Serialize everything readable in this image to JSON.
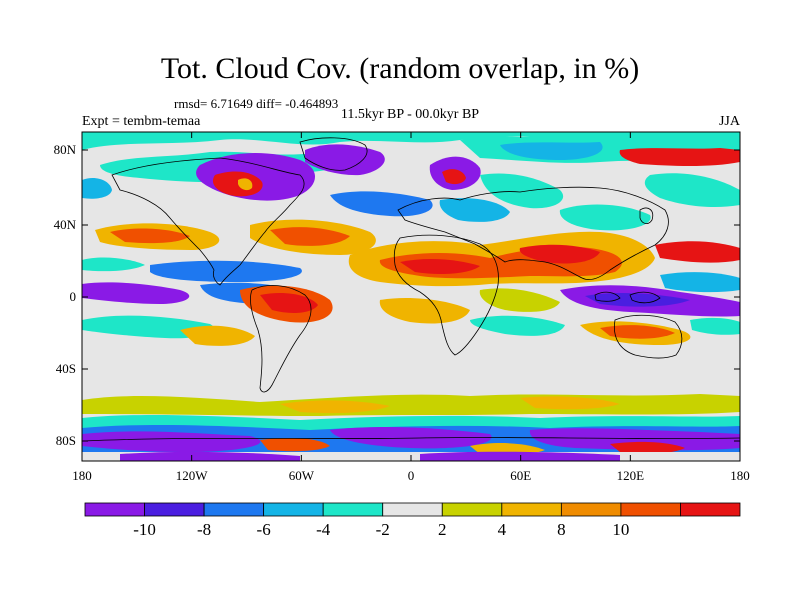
{
  "title": "Tot. Cloud Cov. (random overlap, in %)",
  "stats": "rmsd= 6.71649 diff= -0.464893",
  "subtitle": "11.5kyr BP - 00.0kyr BP",
  "experiment": "Expt = tembm-temaa",
  "season": "JJA",
  "axes": {
    "y_ticks": [
      "80N",
      "40N",
      "0",
      "40S",
      "80S"
    ],
    "x_ticks": [
      "180",
      "120W",
      "60W",
      "0",
      "60E",
      "120E",
      "180"
    ]
  },
  "colorbar": {
    "labels": [
      "-10",
      "-8",
      "-6",
      "-4",
      "-2",
      "2",
      "4",
      "8",
      "10"
    ],
    "colors": [
      "#8a1ae6",
      "#4a1ee0",
      "#1e78f0",
      "#14b4e6",
      "#1ee6c8",
      "#e6e6e6",
      "#c8d200",
      "#f0b400",
      "#f08c00",
      "#f05000",
      "#e61414"
    ]
  },
  "map_colors": {
    "neutral": "#e6e6e6",
    "coast": "#000000"
  }
}
